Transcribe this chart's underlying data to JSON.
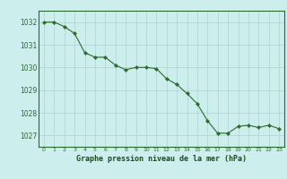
{
  "x": [
    0,
    1,
    2,
    3,
    4,
    5,
    6,
    7,
    8,
    9,
    10,
    11,
    12,
    13,
    14,
    15,
    16,
    17,
    18,
    19,
    20,
    21,
    22,
    23
  ],
  "y": [
    1032.0,
    1032.0,
    1031.8,
    1031.5,
    1030.65,
    1030.45,
    1030.45,
    1030.1,
    1029.9,
    1030.0,
    1030.0,
    1029.95,
    1029.5,
    1029.25,
    1028.85,
    1028.4,
    1027.65,
    1027.1,
    1027.1,
    1027.4,
    1027.45,
    1027.35,
    1027.45,
    1027.3
  ],
  "title": "Graphe pression niveau de la mer (hPa)",
  "ylim": [
    1026.5,
    1032.5
  ],
  "yticks": [
    1027,
    1028,
    1029,
    1030,
    1031,
    1032
  ],
  "xticks": [
    0,
    1,
    2,
    3,
    4,
    5,
    6,
    7,
    8,
    9,
    10,
    11,
    12,
    13,
    14,
    15,
    16,
    17,
    18,
    19,
    20,
    21,
    22,
    23
  ],
  "line_color": "#2d6a2d",
  "marker_color": "#2d6a2d",
  "bg_color": "#cceeed",
  "grid_color": "#aad4d2",
  "title_color": "#1a4a1a",
  "spine_color": "#2d6a2d",
  "tick_color": "#2d6a2d"
}
